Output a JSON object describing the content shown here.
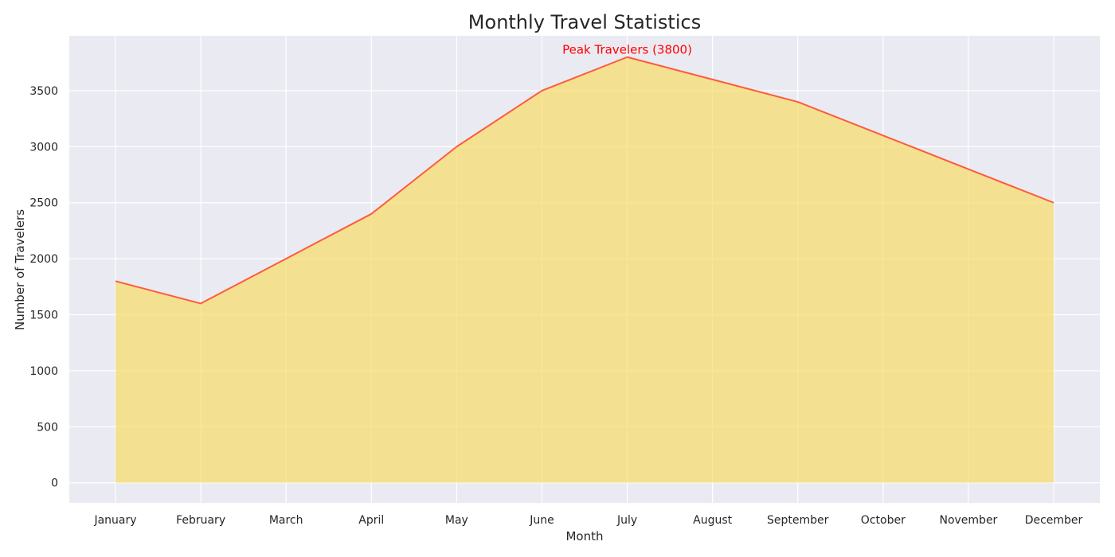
{
  "chart_data": {
    "type": "area",
    "title": "Monthly Travel Statistics",
    "xlabel": "Month",
    "ylabel": "Number of Travelers",
    "categories": [
      "January",
      "February",
      "March",
      "April",
      "May",
      "June",
      "July",
      "August",
      "September",
      "October",
      "November",
      "December"
    ],
    "series": [
      {
        "values": [
          1800,
          1600,
          2000,
          2400,
          3000,
          3500,
          3800,
          3600,
          3400,
          3100,
          2800,
          2500
        ]
      }
    ],
    "ylim": [
      -180,
      3990
    ],
    "yticks": [
      0,
      500,
      1000,
      1500,
      2000,
      2500,
      3000,
      3500
    ],
    "grid": true,
    "annotation": {
      "text": "Peak Travelers (3800)",
      "category": "July",
      "value": 3800
    },
    "colors": {
      "background": "#eaeaf2",
      "grid": "#ffffff",
      "fill": "#f7de6b",
      "line": "#ff5a3c",
      "annotation": "#ff0000"
    }
  }
}
